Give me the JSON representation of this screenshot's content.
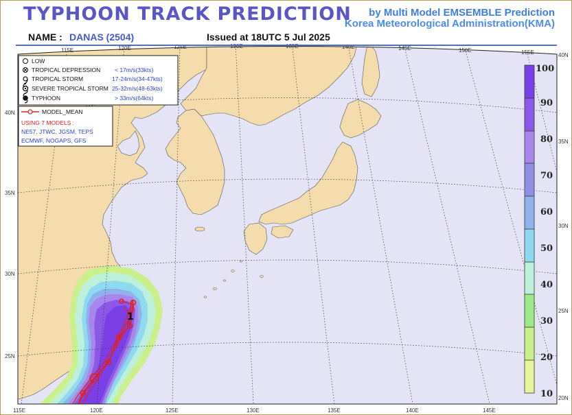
{
  "header": {
    "title": "TYPHOON  TRACK  PREDICTION",
    "byline1": "by Multi Model EMSEMBLE Prediction",
    "byline2": "Korea Meteorological Administration(KMA)",
    "name_label": "NAME :",
    "name_value": "DANAS (2504)",
    "issued": "Issued at  18UTC  5 Jul 2025"
  },
  "axes": {
    "top_lon": [
      "115E",
      "120E",
      "125E",
      "130E",
      "135E",
      "140E",
      "145E",
      "150E",
      "155E"
    ],
    "bottom_lon": [
      "115E",
      "120E",
      "125E",
      "130E",
      "135E",
      "140E",
      "145E"
    ],
    "left_lat": [
      "40N",
      "35N",
      "30N",
      "25N"
    ],
    "right_lat": [
      "40N",
      "35N",
      "30N",
      "25N",
      "20N"
    ]
  },
  "legend": {
    "items": [
      {
        "icon": "low-icon",
        "label": "LOW",
        "range": ""
      },
      {
        "icon": "tropical-depression-icon",
        "label": "TROPICAL DEPRESSION",
        "range": "< 17m/s(33kts)"
      },
      {
        "icon": "tropical-storm-icon",
        "label": "TROPICAL STORM",
        "range": "17-24m/s(34-47kts)"
      },
      {
        "icon": "severe-tropical-storm-icon",
        "label": "SEVERE TROPICAL STORM",
        "range": "25-32m/s(48-63kts)"
      },
      {
        "icon": "typhoon-icon",
        "label": "TYPHOON",
        "range": "> 33m/s(64kts)"
      }
    ],
    "model_mean": "MODEL_MEAN",
    "using": "USING 7 MODELS :",
    "models_line1": "NE57, JTWC, JGSM, TEPS",
    "models_line2": "ECMWF, NOGAPS, GFS"
  },
  "colorbar": {
    "labels": [
      "100",
      "90",
      "80",
      "70",
      "60",
      "50",
      "40",
      "30",
      "20",
      "10"
    ],
    "colors": [
      "#7b3fe8",
      "#8a57e6",
      "#a887ea",
      "#8f8fe4",
      "#8fb1ec",
      "#8fd9f0",
      "#bdf0da",
      "#9ee88a",
      "#c9f08a",
      "#e8f59a"
    ]
  },
  "colors": {
    "ocean": "#e4e4f6",
    "land": "#f5dcad",
    "track": "#e02020",
    "title": "#5a56c8",
    "byline": "#3e7ee8"
  }
}
